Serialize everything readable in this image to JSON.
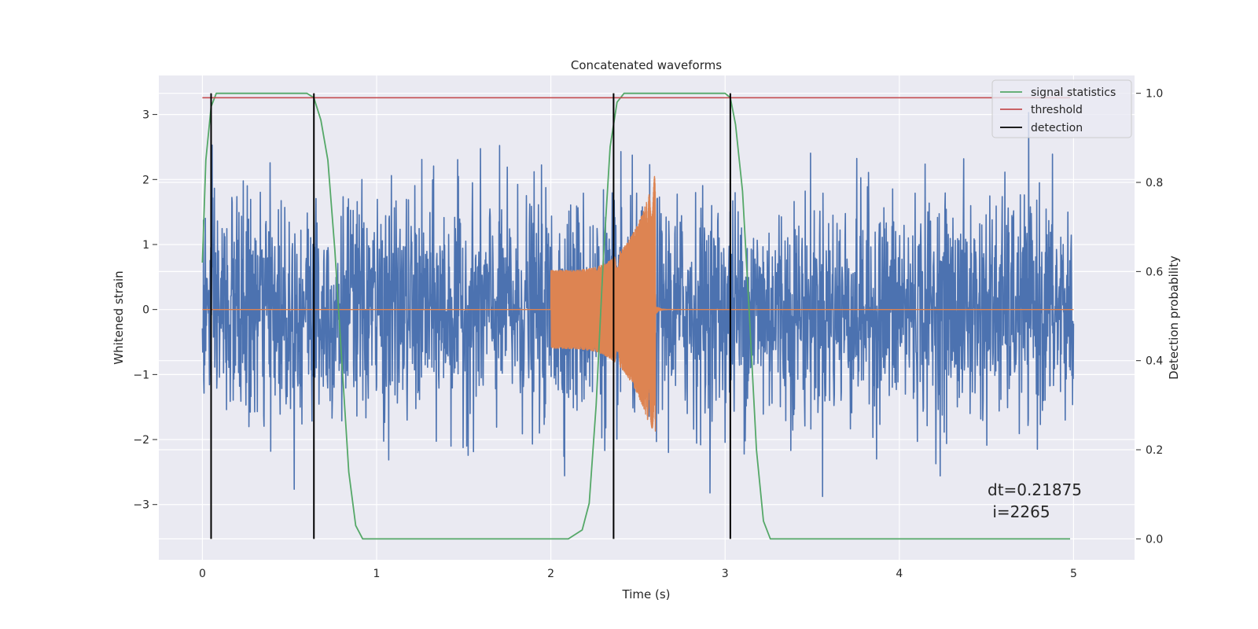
{
  "chart_data": {
    "type": "line",
    "title": "Concatenated waveforms",
    "xlabel": "Time (s)",
    "ylabel": "Whitened strain",
    "y2label": "Detection probability",
    "xlim": [
      -0.25,
      5.35
    ],
    "ylim": [
      -3.85,
      3.6
    ],
    "y2lim": [
      -0.047,
      1.04
    ],
    "xticks": [
      0,
      1,
      2,
      3,
      4,
      5
    ],
    "xtick_labels": [
      "0",
      "1",
      "2",
      "3",
      "4",
      "5"
    ],
    "yticks": [
      -3,
      -2,
      -1,
      0,
      1,
      2,
      3
    ],
    "ytick_labels": [
      "−3",
      "−2",
      "−1",
      "0",
      "1",
      "2",
      "3"
    ],
    "y2ticks": [
      0.0,
      0.2,
      0.4,
      0.6,
      0.8,
      1.0
    ],
    "y2tick_labels": [
      "0.0",
      "0.2",
      "0.4",
      "0.6",
      "0.8",
      "1.0"
    ],
    "grid": true,
    "legend_position": "top-right",
    "series": [
      {
        "name": "",
        "axis": "left",
        "color": "#4c72b0",
        "style": "noise",
        "x_range": [
          0,
          5
        ],
        "amplitude": 0.85,
        "peak": 3.3
      },
      {
        "name": "",
        "axis": "left",
        "color": "#dd8452",
        "style": "chirp",
        "x_range": [
          2.0,
          2.6
        ],
        "amplitude_start": 0.6,
        "amplitude_end": 2.1
      },
      {
        "name": "signal statistics",
        "axis": "right",
        "color": "#55a868",
        "x": [
          0.0,
          0.02,
          0.05,
          0.08,
          0.1,
          0.3,
          0.6,
          0.64,
          0.68,
          0.72,
          0.76,
          0.8,
          0.84,
          0.88,
          0.92,
          2.1,
          2.18,
          2.22,
          2.26,
          2.3,
          2.34,
          2.38,
          2.42,
          2.5,
          3.0,
          3.03,
          3.06,
          3.1,
          3.14,
          3.18,
          3.22,
          3.26,
          4.98
        ],
        "y": [
          0.62,
          0.85,
          0.97,
          1.0,
          1.0,
          1.0,
          1.0,
          0.99,
          0.94,
          0.85,
          0.65,
          0.4,
          0.15,
          0.03,
          0.0,
          0.0,
          0.02,
          0.08,
          0.3,
          0.62,
          0.88,
          0.98,
          1.0,
          1.0,
          1.0,
          0.99,
          0.93,
          0.78,
          0.5,
          0.2,
          0.04,
          0.0,
          0.0
        ]
      },
      {
        "name": "threshold",
        "axis": "right",
        "color": "#c44e52",
        "x": [
          0.0,
          4.98
        ],
        "y": [
          0.99,
          0.99
        ]
      },
      {
        "name": "detection",
        "axis": "right",
        "color": "#000000",
        "style": "vlines",
        "x": [
          0.05,
          0.64,
          2.36,
          3.03
        ],
        "ymin": 0.0,
        "ymax": 1.0
      }
    ],
    "annotations": [
      {
        "text": "dt=0.21875",
        "x": 4.5,
        "y": -2.8
      },
      {
        "text": " i=2265",
        "x": 4.5,
        "y": -3.13
      }
    ]
  }
}
